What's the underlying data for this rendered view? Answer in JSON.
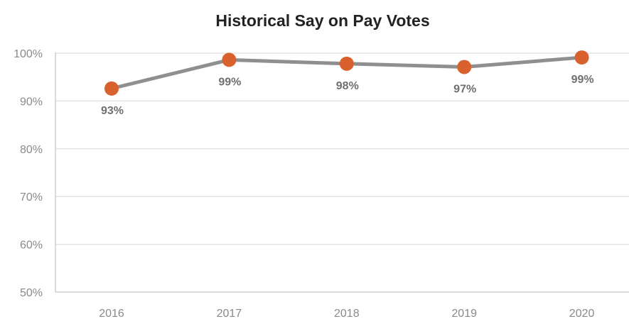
{
  "chart_data": {
    "type": "line",
    "title": "Historical Say on Pay Votes",
    "xlabel": "",
    "ylabel": "",
    "categories": [
      "2016",
      "2017",
      "2018",
      "2019",
      "2020"
    ],
    "series": [
      {
        "values": [
          92.6,
          98.6,
          97.8,
          97.1,
          99.1
        ],
        "labels": [
          "93%",
          "99%",
          "98%",
          "97%",
          "99%"
        ]
      }
    ],
    "ylim": [
      50,
      100
    ],
    "y_ticks": [
      50,
      60,
      70,
      80,
      90,
      100
    ],
    "y_tick_labels": [
      "50%",
      "60%",
      "70%",
      "80%",
      "90%",
      "100%"
    ],
    "grid": true,
    "legend": "none",
    "colors": {
      "line": "#8f8f8f",
      "marker": "#d9612e",
      "grid": "#e3e3e3",
      "axis": "#cfcfcf"
    }
  }
}
